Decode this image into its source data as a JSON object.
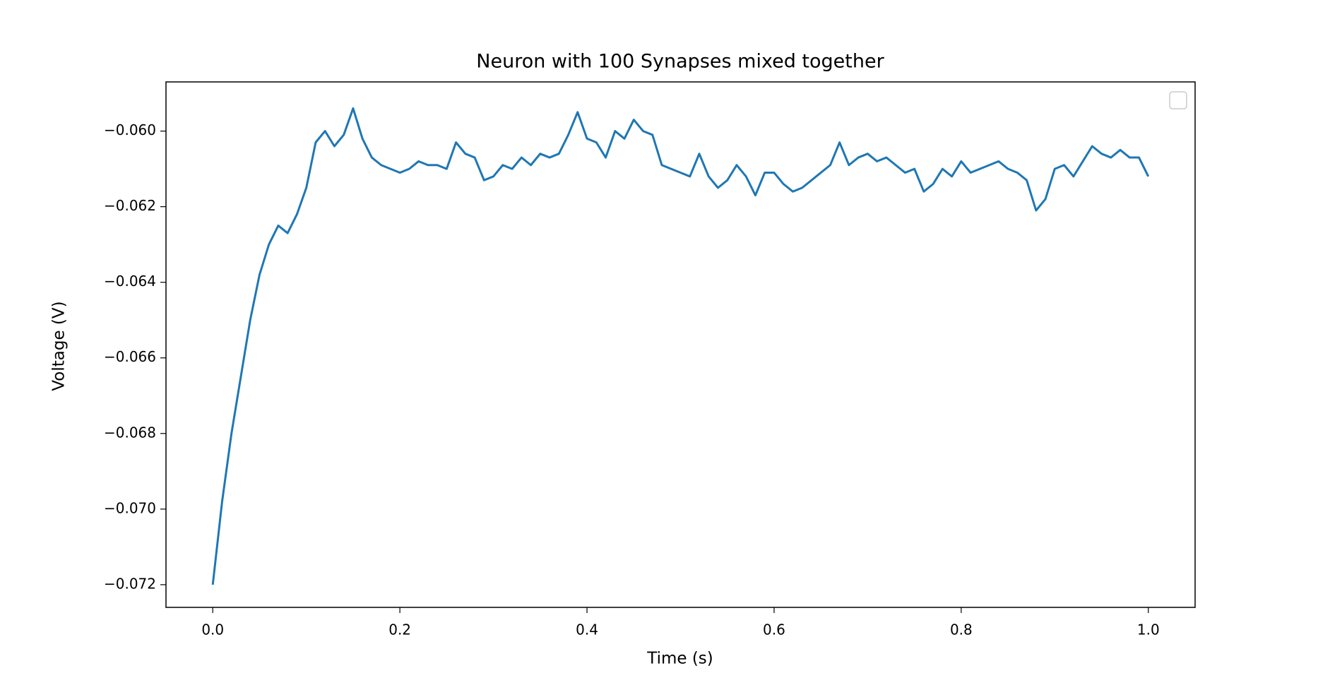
{
  "chart_data": {
    "type": "line",
    "title": "Neuron with 100 Synapses mixed together",
    "x_label": "Time (s)",
    "y_label": "Voltage (V)",
    "color": "#1f77b4",
    "x": [
      0,
      0.01,
      0.02,
      0.03,
      0.04,
      0.05,
      0.06,
      0.07,
      0.08,
      0.09,
      0.1,
      0.11,
      0.12,
      0.13,
      0.14,
      0.15,
      0.16,
      0.17,
      0.18,
      0.19,
      0.2,
      0.21,
      0.22,
      0.23,
      0.24,
      0.25,
      0.26,
      0.27,
      0.28,
      0.29,
      0.3,
      0.31,
      0.32,
      0.33,
      0.34,
      0.35,
      0.36,
      0.37,
      0.38,
      0.39,
      0.4,
      0.41,
      0.42,
      0.43,
      0.44,
      0.45,
      0.46,
      0.47,
      0.48,
      0.49,
      0.5,
      0.51,
      0.52,
      0.53,
      0.54,
      0.55,
      0.56,
      0.57,
      0.58,
      0.59,
      0.6,
      0.61,
      0.62,
      0.63,
      0.64,
      0.65,
      0.66,
      0.67,
      0.68,
      0.69,
      0.7,
      0.71,
      0.72,
      0.73,
      0.74,
      0.75,
      0.76,
      0.77,
      0.78,
      0.79,
      0.8,
      0.81,
      0.82,
      0.83,
      0.84,
      0.85,
      0.86,
      0.87,
      0.88,
      0.89,
      0.9,
      0.91,
      0.92,
      0.93,
      0.94,
      0.95,
      0.96,
      0.97,
      0.98,
      0.99,
      1.0
    ],
    "values": [
      -0.072,
      -0.0698,
      -0.068,
      -0.0665,
      -0.065,
      -0.0638,
      -0.063,
      -0.0625,
      -0.0627,
      -0.0622,
      -0.0615,
      -0.0603,
      -0.06,
      -0.0604,
      -0.0601,
      -0.0594,
      -0.0602,
      -0.0607,
      -0.0609,
      -0.061,
      -0.0611,
      -0.061,
      -0.0608,
      -0.0609,
      -0.0609,
      -0.061,
      -0.0603,
      -0.0606,
      -0.0607,
      -0.0613,
      -0.0612,
      -0.0609,
      -0.061,
      -0.0607,
      -0.0609,
      -0.0606,
      -0.0607,
      -0.0606,
      -0.0601,
      -0.0595,
      -0.0602,
      -0.0603,
      -0.0607,
      -0.06,
      -0.0602,
      -0.0597,
      -0.06,
      -0.0601,
      -0.0609,
      -0.061,
      -0.0611,
      -0.0612,
      -0.0606,
      -0.0612,
      -0.0615,
      -0.0613,
      -0.0609,
      -0.0612,
      -0.0617,
      -0.0611,
      -0.0611,
      -0.0614,
      -0.0616,
      -0.0615,
      -0.0613,
      -0.0611,
      -0.0609,
      -0.0603,
      -0.0609,
      -0.0607,
      -0.0606,
      -0.0608,
      -0.0607,
      -0.0609,
      -0.0611,
      -0.061,
      -0.0616,
      -0.0614,
      -0.061,
      -0.0612,
      -0.0608,
      -0.0611,
      -0.061,
      -0.0609,
      -0.0608,
      -0.061,
      -0.0611,
      -0.0613,
      -0.0621,
      -0.0618,
      -0.061,
      -0.0609,
      -0.0612,
      -0.0608,
      -0.0604,
      -0.0606,
      -0.0607,
      -0.0605,
      -0.0607,
      -0.0607,
      -0.0612
    ],
    "xlim": [
      -0.05,
      1.05
    ],
    "ylim": [
      -0.0726,
      -0.0587
    ],
    "xticks": [
      {
        "value": 0,
        "label": "0.0"
      },
      0.2,
      0.4,
      0.6,
      0.8,
      {
        "value": 1,
        "label": "1.0"
      }
    ],
    "yticks": [
      {
        "value": -0.072,
        "label": "−0.072"
      },
      {
        "value": -0.07,
        "label": "−0.070"
      },
      {
        "value": -0.068,
        "label": "−0.068"
      },
      {
        "value": -0.066,
        "label": "−0.066"
      },
      {
        "value": -0.064,
        "label": "−0.064"
      },
      {
        "value": -0.062,
        "label": "−0.062"
      },
      {
        "value": -0.06,
        "label": "−0.060"
      }
    ]
  }
}
